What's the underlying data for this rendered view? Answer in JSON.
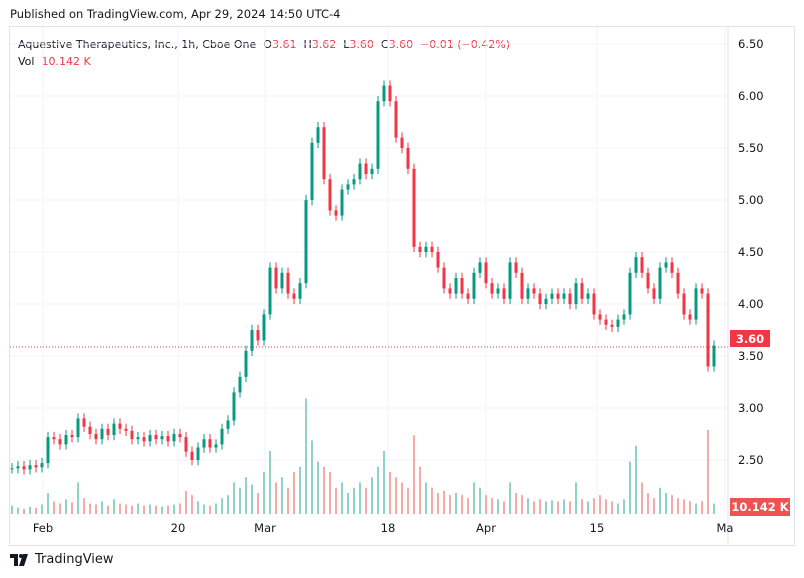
{
  "header": {
    "published": "Published on TradingView.com, Apr 29, 2024 14:50 UTC-4"
  },
  "legend": {
    "symbol": "Aquestive Therapeutics, Inc., 1h, Cboe One",
    "o_label": "O",
    "o": "3.61",
    "h_label": "H",
    "h": "3.62",
    "l_label": "L",
    "l": "3.60",
    "c_label": "C",
    "c": "3.60",
    "change": "−0.01 (−0.42%)",
    "vol_label": "Vol",
    "vol": "10.142 K"
  },
  "badges": {
    "price": "3.60",
    "volume": "10.142 K"
  },
  "footer": {
    "brand": "TradingView"
  },
  "colors": {
    "up": "#089981",
    "down": "#f23645",
    "vol_up": "#8fd3c7",
    "vol_down": "#f7a9a7"
  },
  "chart_data": {
    "type": "candlestick",
    "ylim": [
      2.3,
      6.6
    ],
    "y_ticks": [
      "6.50",
      "6.00",
      "5.50",
      "5.00",
      "4.50",
      "4.00",
      "3.50",
      "3.00",
      "2.50"
    ],
    "x_ticks": [
      "Feb",
      "20",
      "Mar",
      "18",
      "Apr",
      "15",
      "Ma"
    ],
    "last_price": 3.6,
    "closes": [
      2.42,
      2.44,
      2.41,
      2.45,
      2.43,
      2.47,
      2.72,
      2.7,
      2.65,
      2.74,
      2.72,
      2.9,
      2.82,
      2.75,
      2.7,
      2.8,
      2.74,
      2.85,
      2.8,
      2.78,
      2.7,
      2.72,
      2.68,
      2.74,
      2.7,
      2.73,
      2.68,
      2.75,
      2.72,
      2.58,
      2.5,
      2.62,
      2.7,
      2.62,
      2.65,
      2.8,
      2.88,
      3.15,
      3.3,
      3.55,
      3.75,
      3.65,
      3.9,
      4.35,
      4.15,
      4.3,
      4.1,
      4.05,
      4.2,
      5.0,
      5.55,
      5.7,
      5.2,
      4.9,
      4.85,
      5.1,
      5.15,
      5.2,
      5.35,
      5.25,
      5.3,
      5.95,
      6.1,
      5.95,
      5.6,
      5.5,
      5.3,
      4.55,
      4.5,
      4.55,
      4.5,
      4.35,
      4.15,
      4.1,
      4.25,
      4.1,
      4.05,
      4.3,
      4.4,
      4.2,
      4.1,
      4.15,
      4.05,
      4.4,
      4.3,
      4.05,
      4.15,
      4.1,
      4.0,
      4.05,
      4.1,
      4.05,
      4.1,
      4.0,
      4.2,
      4.05,
      4.1,
      3.9,
      3.85,
      3.8,
      3.78,
      3.85,
      3.9,
      4.3,
      4.45,
      4.3,
      4.15,
      4.05,
      4.35,
      4.4,
      4.3,
      4.1,
      3.9,
      3.85,
      4.15,
      4.1,
      3.4,
      3.6
    ],
    "volumes_k": [
      8,
      6,
      5,
      7,
      6,
      9,
      20,
      12,
      10,
      14,
      11,
      30,
      15,
      10,
      9,
      12,
      8,
      14,
      10,
      9,
      8,
      10,
      8,
      9,
      8,
      7,
      8,
      9,
      10,
      22,
      18,
      12,
      9,
      8,
      10,
      15,
      18,
      30,
      25,
      35,
      28,
      20,
      40,
      60,
      30,
      35,
      25,
      40,
      45,
      110,
      70,
      50,
      45,
      40,
      25,
      30,
      20,
      25,
      30,
      25,
      35,
      45,
      60,
      40,
      35,
      30,
      25,
      75,
      45,
      30,
      25,
      20,
      22,
      18,
      20,
      18,
      15,
      30,
      25,
      18,
      15,
      14,
      12,
      30,
      20,
      18,
      15,
      12,
      14,
      12,
      13,
      12,
      14,
      12,
      30,
      14,
      12,
      15,
      18,
      14,
      12,
      10,
      14,
      50,
      65,
      30,
      20,
      15,
      25,
      20,
      18,
      15,
      14,
      12,
      10,
      12,
      80,
      10
    ]
  }
}
